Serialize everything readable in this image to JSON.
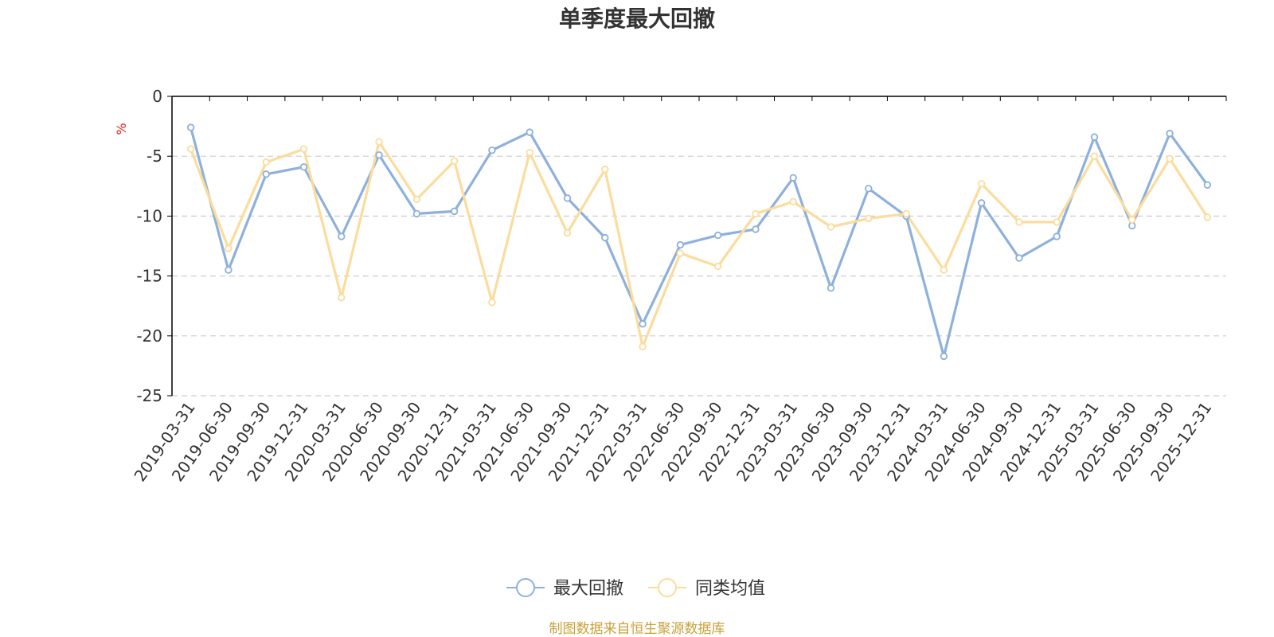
{
  "chart_data": {
    "type": "line",
    "title": "单季度最大回撤",
    "ylabel": "%",
    "xlabel": "",
    "ylim": [
      -25,
      0
    ],
    "yticks": [
      0,
      -5,
      -10,
      -15,
      -20,
      -25
    ],
    "grid": true,
    "legend_position": "bottom-center",
    "categories": [
      "2019-03-31",
      "2019-06-30",
      "2019-09-30",
      "2019-12-31",
      "2020-03-31",
      "2020-06-30",
      "2020-09-30",
      "2020-12-31",
      "2021-03-31",
      "2021-06-30",
      "2021-09-30",
      "2021-12-31",
      "2022-03-31",
      "2022-06-30",
      "2022-09-30",
      "2022-12-31",
      "2023-03-31",
      "2023-06-30",
      "2023-09-30",
      "2023-12-31",
      "2024-03-31",
      "2024-06-30",
      "2024-09-30",
      "2024-12-31",
      "2025-03-31",
      "2025-06-30",
      "2025-09-30",
      "2025-12-31"
    ],
    "series": [
      {
        "name": "最大回撤",
        "color": "#8eb0dd",
        "values": [
          -2.6,
          -14.5,
          -6.5,
          -5.9,
          -11.7,
          -4.9,
          -9.8,
          -9.6,
          -4.5,
          -3.0,
          -8.5,
          -11.8,
          -19.0,
          -12.4,
          -11.6,
          -11.1,
          -6.8,
          -16.0,
          -7.7,
          -10.0,
          -21.7,
          -8.9,
          -13.5,
          -11.7,
          -3.4,
          -10.8,
          -3.1,
          -7.4
        ]
      },
      {
        "name": "同类均值",
        "color": "#fbdc9c",
        "values": [
          -4.4,
          -12.7,
          -5.5,
          -4.4,
          -16.8,
          -3.8,
          -8.6,
          -5.4,
          -17.2,
          -4.7,
          -11.4,
          -6.1,
          -20.9,
          -13.1,
          -14.2,
          -9.8,
          -8.8,
          -10.9,
          -10.2,
          -9.8,
          -14.5,
          -7.3,
          -10.5,
          -10.5,
          -5.0,
          -10.3,
          -5.2,
          -10.1
        ]
      }
    ]
  },
  "source_text": "制图数据来自恒生聚源数据库",
  "colors": {
    "axis": "#000000",
    "grid": "#cccccc",
    "text": "#333333",
    "unit": "#e02020",
    "source": "#c9a13a"
  }
}
